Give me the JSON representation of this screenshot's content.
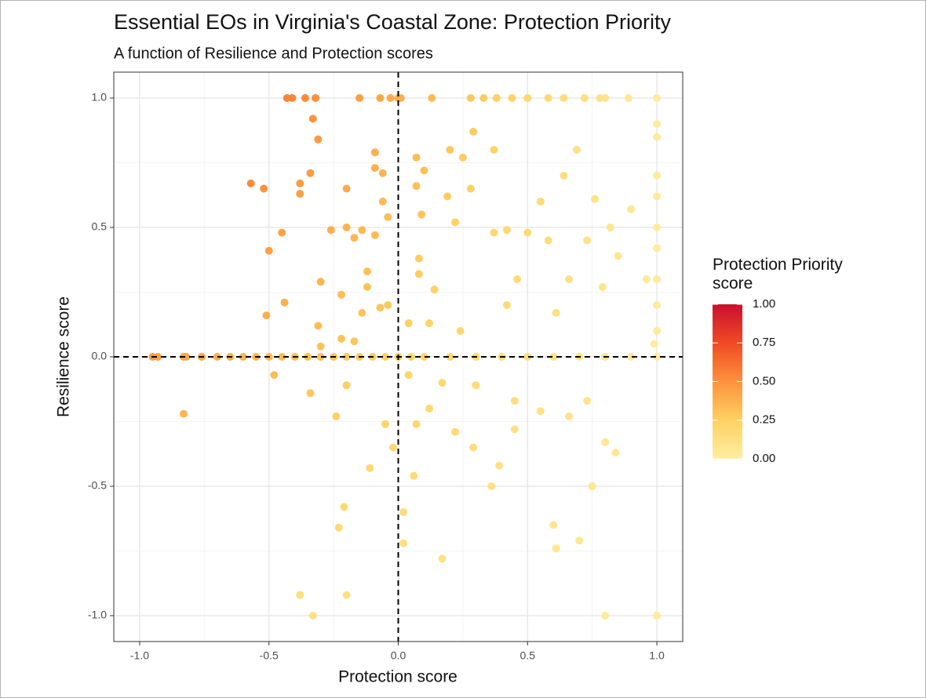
{
  "chart_data": {
    "type": "scatter",
    "title": "Essential EOs in Virginia's Coastal Zone: Protection Priority",
    "subtitle": "A function of Resilience and Protection scores",
    "x_label": "Protection score",
    "y_label": "Resilience score",
    "legend_title": "Protection Priority score",
    "xlim": [
      -1.1,
      1.1
    ],
    "ylim": [
      -1.1,
      1.1
    ],
    "xticks": [
      {
        "value": -1,
        "label": "-1.0"
      },
      -0.5,
      {
        "value": 0,
        "label": "0.0"
      },
      0.5,
      {
        "value": 1,
        "label": "1.0"
      }
    ],
    "yticks": [
      {
        "value": -1,
        "label": "-1.0"
      },
      -0.5,
      {
        "value": 0,
        "label": "0.0"
      },
      0.5,
      {
        "value": 1,
        "label": "1.0"
      }
    ],
    "grid": true,
    "reference_lines": {
      "x": 0,
      "y": 0
    },
    "colorlim": [
      0,
      1
    ],
    "colorticks": [
      {
        "value": 0,
        "label": "0.00"
      },
      {
        "value": 0.25,
        "label": "0.25"
      },
      {
        "value": 0.5,
        "label": "0.50"
      },
      {
        "value": 0.75,
        "label": "0.75"
      },
      {
        "value": 1,
        "label": "1.00"
      }
    ],
    "colorscale": [
      [
        0,
        "#ffeda0"
      ],
      [
        0.25,
        "#fed162"
      ],
      [
        0.5,
        "#fd923c"
      ],
      [
        0.75,
        "#f04a25"
      ],
      [
        1,
        "#c8102e"
      ]
    ],
    "x": [
      -0.43,
      -0.41,
      -0.36,
      -0.32,
      -0.15,
      -0.07,
      -0.03,
      0,
      0.01,
      0.13,
      0.28,
      0.33,
      0.38,
      0.44,
      0.5,
      0.58,
      0.64,
      0.72,
      0.78,
      0.8,
      0.89,
      1,
      -0.33,
      -0.31,
      -0.34,
      -0.57,
      -0.52,
      -0.38,
      -0.38,
      -0.2,
      -0.45,
      -0.5,
      -0.26,
      -0.2,
      -0.3,
      -0.44,
      -0.51,
      -0.31,
      -0.22,
      -0.14,
      -0.17,
      -0.09,
      -0.12,
      -0.09,
      -0.09,
      -0.06,
      -0.06,
      -0.04,
      -0.12,
      -0.07,
      -0.04,
      -0.14,
      -0.17,
      -0.22,
      -0.3,
      -0.34,
      -0.24,
      -0.48,
      -0.83,
      -0.2,
      -0.05,
      -0.11,
      -0.02,
      0.04,
      0.07,
      0.06,
      -0.21,
      -0.23,
      0.02,
      0.02,
      -0.38,
      -0.33,
      -0.2,
      0.17,
      0.07,
      0.07,
      0.08,
      0.08,
      0.09,
      0.1,
      0.19,
      0.2,
      0.25,
      0.29,
      0.37,
      0.28,
      0.22,
      0.14,
      0.12,
      0.04,
      0.24,
      0.37,
      0.42,
      0.42,
      0.46,
      0.5,
      0.55,
      0.58,
      0.61,
      0.64,
      0.66,
      0.69,
      0.73,
      0.76,
      0.79,
      0.82,
      0.85,
      0.9,
      0.96,
      1,
      1,
      1,
      1,
      1,
      1,
      1,
      1,
      1,
      0.99,
      -0.95,
      -0.93,
      -0.83,
      -0.82,
      -0.76,
      -0.7,
      -0.65,
      -0.6,
      -0.55,
      -0.5,
      -0.45,
      -0.4,
      -0.35,
      -0.3,
      -0.25,
      -0.2,
      -0.15,
      -0.1,
      -0.05,
      0,
      0.05,
      0.1,
      0.2,
      0.3,
      0.4,
      0.5,
      0.6,
      0.7,
      0.8,
      0.9,
      1,
      0.22,
      0.29,
      0.36,
      0.39,
      0.45,
      0.45,
      0.55,
      0.66,
      0.73,
      0.75,
      0.8,
      0.84,
      0.6,
      0.61,
      0.7,
      0.8,
      1,
      0.3,
      0.17,
      0.12
    ],
    "values": [
      1,
      1,
      1,
      1,
      1,
      1,
      1,
      1,
      1,
      1,
      1,
      1,
      1,
      1,
      1,
      1,
      1,
      1,
      1,
      1,
      1,
      1,
      0.92,
      0.84,
      0.71,
      0.67,
      0.65,
      0.67,
      0.63,
      0.65,
      0.48,
      0.41,
      0.49,
      0.5,
      0.29,
      0.21,
      0.16,
      0.12,
      0.24,
      0.49,
      0.46,
      0.47,
      0.33,
      0.79,
      0.73,
      0.71,
      0.6,
      0.54,
      0.27,
      0.19,
      0.2,
      0.17,
      0.06,
      0.07,
      0.04,
      -0.14,
      -0.23,
      -0.07,
      -0.22,
      -0.11,
      -0.26,
      -0.43,
      -0.35,
      -0.07,
      -0.26,
      -0.46,
      -0.58,
      -0.66,
      -0.6,
      -0.72,
      -0.92,
      -1,
      -0.92,
      -0.78,
      0.77,
      0.66,
      0.38,
      0.32,
      0.55,
      0.72,
      0.62,
      0.8,
      0.77,
      0.87,
      0.8,
      0.65,
      0.52,
      0.26,
      0.13,
      0.13,
      0.1,
      0.48,
      0.49,
      0.2,
      0.3,
      0.48,
      0.6,
      0.45,
      0.17,
      0.7,
      0.3,
      0.8,
      0.45,
      0.61,
      0.27,
      0.5,
      0.39,
      0.57,
      0.3,
      0.85,
      0.7,
      0.5,
      0.3,
      0.1,
      0.9,
      0.62,
      0.42,
      0.2,
      0.05,
      0,
      0,
      0,
      0,
      0,
      0,
      0,
      0,
      0,
      0,
      0,
      0,
      0,
      0,
      0,
      0,
      0,
      0,
      0,
      0,
      0,
      0,
      0,
      0,
      0,
      0,
      0,
      0,
      0,
      0,
      0,
      -0.29,
      -0.35,
      -0.5,
      -0.42,
      -0.28,
      -0.17,
      -0.21,
      -0.23,
      -0.17,
      -0.5,
      -0.33,
      -0.37,
      -0.65,
      -0.74,
      -0.71,
      -1,
      -1,
      -0.11,
      -0.1,
      -0.2
    ],
    "priority": [
      0.55,
      0.54,
      0.52,
      0.51,
      0.45,
      0.42,
      0.4,
      0.39,
      0.38,
      0.34,
      0.29,
      0.27,
      0.25,
      0.23,
      0.2,
      0.18,
      0.15,
      0.12,
      0.1,
      0.09,
      0.06,
      0.02,
      0.5,
      0.47,
      0.46,
      0.52,
      0.5,
      0.46,
      0.45,
      0.4,
      0.44,
      0.44,
      0.39,
      0.37,
      0.36,
      0.38,
      0.39,
      0.33,
      0.33,
      0.35,
      0.36,
      0.34,
      0.32,
      0.39,
      0.38,
      0.37,
      0.35,
      0.33,
      0.31,
      0.29,
      0.28,
      0.3,
      0.29,
      0.3,
      0.31,
      0.29,
      0.25,
      0.33,
      0.36,
      0.26,
      0.21,
      0.19,
      0.19,
      0.22,
      0.19,
      0.16,
      0.18,
      0.17,
      0.15,
      0.13,
      0.13,
      0.11,
      0.12,
      0.11,
      0.33,
      0.32,
      0.27,
      0.27,
      0.3,
      0.32,
      0.27,
      0.29,
      0.27,
      0.27,
      0.23,
      0.25,
      0.25,
      0.24,
      0.23,
      0.25,
      0.2,
      0.2,
      0.19,
      0.17,
      0.16,
      0.17,
      0.16,
      0.14,
      0.12,
      0.14,
      0.11,
      0.12,
      0.1,
      0.09,
      0.07,
      0.07,
      0.06,
      0.05,
      0.03,
      0.02,
      0.02,
      0.02,
      0.02,
      0.02,
      0.02,
      0.02,
      0.02,
      0.02,
      0.02,
      0.45,
      0.44,
      0.42,
      0.42,
      0.41,
      0.39,
      0.38,
      0.37,
      0.36,
      0.35,
      0.34,
      0.33,
      0.32,
      0.31,
      0.3,
      0.28,
      0.27,
      0.26,
      0.25,
      0.24,
      0.23,
      0.22,
      0.2,
      0.17,
      0.15,
      0.13,
      0.11,
      0.09,
      0.06,
      0.04,
      0.02,
      0.16,
      0.14,
      0.11,
      0.12,
      0.12,
      0.13,
      0.1,
      0.08,
      0.07,
      0.06,
      0.05,
      0.05,
      0.07,
      0.06,
      0.05,
      0.03,
      0.02,
      0.16,
      0.19,
      0.19
    ]
  }
}
